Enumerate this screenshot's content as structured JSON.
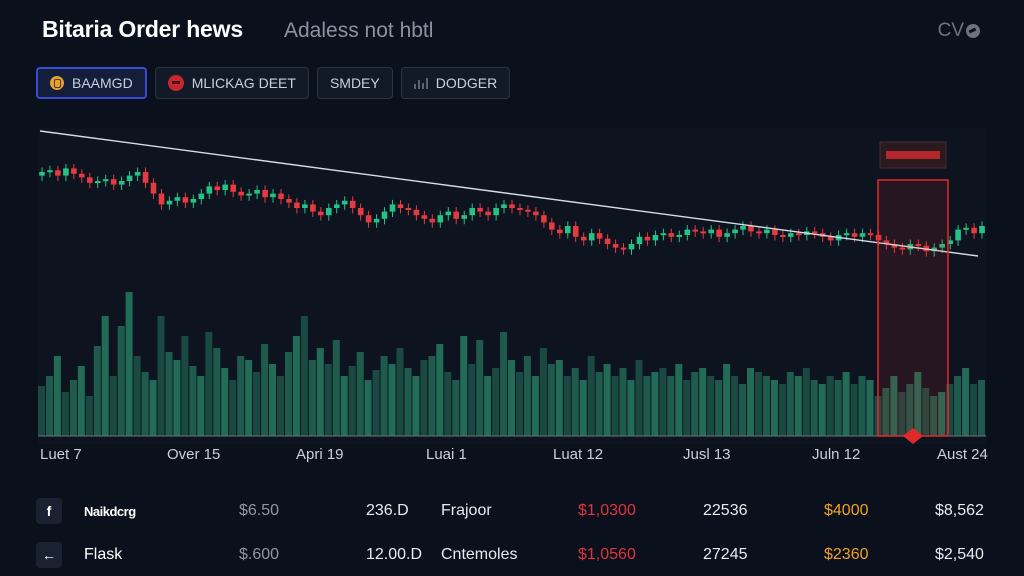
{
  "header": {
    "title": "Bitaria Order hews",
    "subtitle": "Adaless not hbtl",
    "right_label": "CV"
  },
  "tabs": [
    {
      "label": "BAAMGD",
      "icon": "coin-icon",
      "active": true
    },
    {
      "label": "MLICKAG DEET",
      "icon": "red-circle-icon",
      "active": false
    },
    {
      "label": "SMDEY",
      "icon": "",
      "active": false
    },
    {
      "label": "DODGER",
      "icon": "chart-icon",
      "active": false
    }
  ],
  "colors": {
    "up": "#25c286",
    "down": "#e53a3f",
    "volume": "#2a8a6a",
    "highlight": "#e02a2a",
    "background": "#0b111c",
    "accent": "#3a4bd6"
  },
  "chart_data": {
    "type": "candlestick",
    "x_tick_labels": [
      "Luet 7",
      "Over 15",
      "Apri 19",
      "Luai 1",
      "Luat 12",
      "Jusl 13",
      "Juln 12",
      "Aust 24"
    ],
    "trendline": "descending from top-left to right edge",
    "highlight_region": "last ~8% of range, red box",
    "close": [
      0.9,
      0.91,
      0.88,
      0.92,
      0.89,
      0.87,
      0.84,
      0.85,
      0.86,
      0.83,
      0.85,
      0.88,
      0.9,
      0.84,
      0.78,
      0.72,
      0.74,
      0.76,
      0.73,
      0.75,
      0.78,
      0.82,
      0.8,
      0.83,
      0.79,
      0.77,
      0.78,
      0.8,
      0.76,
      0.78,
      0.75,
      0.73,
      0.7,
      0.72,
      0.68,
      0.66,
      0.7,
      0.72,
      0.74,
      0.7,
      0.66,
      0.62,
      0.64,
      0.68,
      0.72,
      0.7,
      0.69,
      0.66,
      0.64,
      0.62,
      0.66,
      0.68,
      0.64,
      0.66,
      0.7,
      0.68,
      0.66,
      0.7,
      0.72,
      0.7,
      0.69,
      0.68,
      0.66,
      0.62,
      0.58,
      0.56,
      0.6,
      0.54,
      0.52,
      0.56,
      0.53,
      0.5,
      0.48,
      0.47,
      0.5,
      0.54,
      0.52,
      0.55,
      0.56,
      0.54,
      0.55,
      0.58,
      0.57,
      0.56,
      0.58,
      0.54,
      0.56,
      0.58,
      0.6,
      0.57,
      0.56,
      0.58,
      0.55,
      0.54,
      0.56,
      0.55,
      0.57,
      0.56,
      0.54,
      0.52,
      0.55,
      0.56,
      0.54,
      0.56,
      0.55,
      0.52,
      0.5,
      0.48,
      0.47,
      0.5,
      0.49,
      0.46,
      0.48,
      0.5,
      0.52,
      0.58,
      0.59,
      0.56,
      0.6
    ],
    "volume": [
      0.25,
      0.3,
      0.4,
      0.22,
      0.28,
      0.35,
      0.2,
      0.45,
      0.6,
      0.3,
      0.55,
      0.72,
      0.4,
      0.32,
      0.28,
      0.6,
      0.42,
      0.38,
      0.5,
      0.35,
      0.3,
      0.52,
      0.44,
      0.34,
      0.28,
      0.4,
      0.38,
      0.32,
      0.46,
      0.36,
      0.3,
      0.42,
      0.5,
      0.6,
      0.38,
      0.44,
      0.36,
      0.48,
      0.3,
      0.35,
      0.42,
      0.28,
      0.33,
      0.4,
      0.36,
      0.44,
      0.34,
      0.3,
      0.38,
      0.4,
      0.46,
      0.32,
      0.28,
      0.5,
      0.36,
      0.48,
      0.3,
      0.34,
      0.52,
      0.38,
      0.32,
      0.4,
      0.3,
      0.44,
      0.36,
      0.38,
      0.3,
      0.34,
      0.28,
      0.4,
      0.32,
      0.36,
      0.3,
      0.34,
      0.28,
      0.38,
      0.3,
      0.32,
      0.34,
      0.3,
      0.36,
      0.28,
      0.32,
      0.34,
      0.3,
      0.28,
      0.36,
      0.3,
      0.26,
      0.34,
      0.32,
      0.3,
      0.28,
      0.26,
      0.32,
      0.3,
      0.34,
      0.28,
      0.26,
      0.3,
      0.28,
      0.32,
      0.26,
      0.3,
      0.28,
      0.2,
      0.24,
      0.3,
      0.22,
      0.26,
      0.32,
      0.24,
      0.2,
      0.22,
      0.26,
      0.3,
      0.34,
      0.26,
      0.28
    ]
  },
  "table": {
    "rows": [
      {
        "icon": "f",
        "name": "Naikdcrg",
        "price": "$6.50",
        "vol": "236.D",
        "src": "Frajoor",
        "red": "$1,0300",
        "num": "22536",
        "orange": "$4000",
        "last": "$8,562"
      },
      {
        "icon": "←",
        "name": "Flask",
        "price": "$.600",
        "vol": "12.00.D",
        "src": "Cntemoles",
        "red": "$1,0560",
        "num": "27245",
        "orange": "$2360",
        "last": "$2,540"
      }
    ]
  }
}
